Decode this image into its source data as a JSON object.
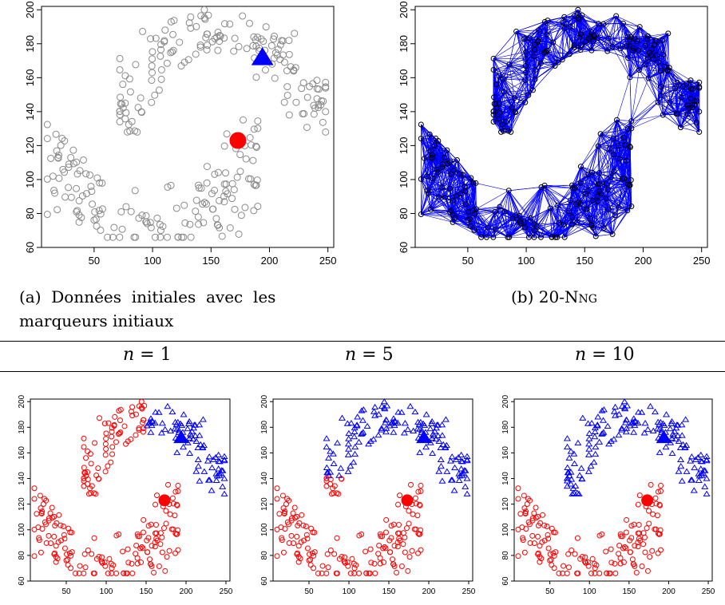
{
  "figure": {
    "captions": {
      "a": "(a) Données initiales avec les marqueurs initiaux",
      "a_line1": "(a)  Données  initiales  avec  les",
      "a_line2": "marqueurs initiaux",
      "b_prefix": "(b) 20-",
      "b_name": "Nng"
    },
    "row_headers": [
      {
        "var": "n",
        "eq": "= 1"
      },
      {
        "var": "n",
        "eq": "= 5"
      },
      {
        "var": "n",
        "eq": "= 10"
      }
    ]
  },
  "colors": {
    "points_gray": "#8a8a8a",
    "class_red": "#ff0000",
    "class_blue": "#0000ff",
    "edges": "#0000ff",
    "axis": "#000000"
  },
  "chart_data": [
    {
      "id": "a",
      "type": "scatter",
      "title": "",
      "xlabel": "",
      "ylabel": "",
      "xlim": [
        5,
        255
      ],
      "ylim": [
        60,
        202
      ],
      "xticks": [
        50,
        100,
        150,
        200,
        250
      ],
      "yticks": [
        60,
        80,
        100,
        120,
        140,
        160,
        180,
        200
      ],
      "dataset": "two interleaved moons, ~300 points, all gray circles",
      "markers": [
        {
          "shape": "circle",
          "x": 173,
          "y": 123,
          "color": "#ff0000"
        },
        {
          "shape": "triangle",
          "x": 194,
          "y": 172,
          "color": "#0000ff"
        }
      ]
    },
    {
      "id": "b",
      "type": "scatter",
      "title": "",
      "xlabel": "",
      "ylabel": "",
      "xlim": [
        5,
        255
      ],
      "ylim": [
        60,
        202
      ],
      "xticks": [
        50,
        100,
        150,
        200,
        250
      ],
      "yticks": [
        60,
        80,
        100,
        120,
        140,
        160,
        180,
        200
      ],
      "graph": "20-nearest-neighbour graph, blue edges, black circle nodes"
    },
    {
      "id": "n1",
      "type": "scatter",
      "title": "",
      "xlim": [
        5,
        255
      ],
      "ylim": [
        60,
        202
      ],
      "xticks": [
        50,
        100,
        150,
        200,
        250
      ],
      "yticks": [
        60,
        80,
        100,
        120,
        140,
        160,
        180,
        200
      ],
      "assignment": "red = lower moon + left end of upper moon (x < ~150); blue = rest of upper moon",
      "markers": [
        {
          "shape": "circle",
          "x": 173,
          "y": 123,
          "color": "#ff0000"
        },
        {
          "shape": "triangle",
          "x": 194,
          "y": 172,
          "color": "#0000ff"
        }
      ]
    },
    {
      "id": "n5",
      "type": "scatter",
      "title": "",
      "xlim": [
        5,
        255
      ],
      "ylim": [
        60,
        202
      ],
      "xticks": [
        50,
        100,
        150,
        200,
        250
      ],
      "yticks": [
        60,
        80,
        100,
        120,
        140,
        160,
        180,
        200
      ],
      "assignment": "red = lower moon; blue = upper moon (a few red points near x 85-95, y 130-140)",
      "markers": [
        {
          "shape": "circle",
          "x": 173,
          "y": 123,
          "color": "#ff0000"
        },
        {
          "shape": "triangle",
          "x": 194,
          "y": 172,
          "color": "#0000ff"
        }
      ]
    },
    {
      "id": "n10",
      "type": "scatter",
      "title": "",
      "xlim": [
        5,
        255
      ],
      "ylim": [
        60,
        202
      ],
      "xticks": [
        50,
        100,
        150,
        200,
        250
      ],
      "yticks": [
        60,
        80,
        100,
        120,
        140,
        160,
        180,
        200
      ],
      "assignment": "red = lower moon; blue = upper moon (perfect separation)",
      "markers": [
        {
          "shape": "circle",
          "x": 173,
          "y": 123,
          "color": "#ff0000"
        },
        {
          "shape": "triangle",
          "x": 194,
          "y": 172,
          "color": "#0000ff"
        }
      ]
    }
  ]
}
